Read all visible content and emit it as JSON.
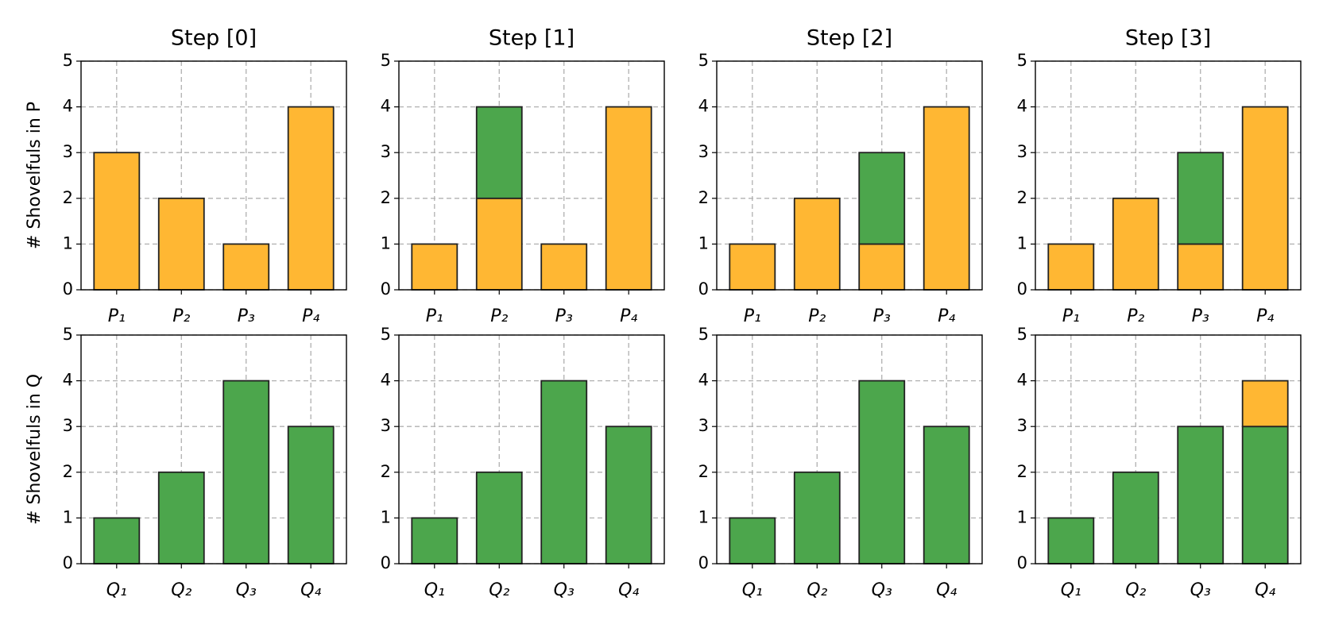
{
  "chart_data": [
    {
      "type": "bar",
      "stacked": true,
      "title": "Step [0]",
      "ylabel": "# Shovelfuls in P",
      "categories": [
        "P₁",
        "P₂",
        "P₃",
        "P₄"
      ],
      "series": [
        {
          "color": "#ffb733",
          "values": [
            3,
            2,
            1,
            4
          ]
        }
      ],
      "ylim": [
        0,
        5
      ],
      "yticks": [
        0,
        1,
        2,
        3,
        4,
        5
      ],
      "grid": true
    },
    {
      "type": "bar",
      "stacked": true,
      "title": "Step [1]",
      "categories": [
        "P₁",
        "P₂",
        "P₃",
        "P₄"
      ],
      "series": [
        {
          "color": "#ffb733",
          "values": [
            1,
            2,
            1,
            4
          ]
        },
        {
          "color": "#4ca64c",
          "values": [
            0,
            2,
            0,
            0
          ]
        }
      ],
      "ylim": [
        0,
        5
      ],
      "yticks": [
        0,
        1,
        2,
        3,
        4,
        5
      ],
      "grid": true
    },
    {
      "type": "bar",
      "stacked": true,
      "title": "Step [2]",
      "categories": [
        "P₁",
        "P₂",
        "P₃",
        "P₄"
      ],
      "series": [
        {
          "color": "#ffb733",
          "values": [
            1,
            2,
            1,
            4
          ]
        },
        {
          "color": "#4ca64c",
          "values": [
            0,
            0,
            2,
            0
          ]
        }
      ],
      "ylim": [
        0,
        5
      ],
      "yticks": [
        0,
        1,
        2,
        3,
        4,
        5
      ],
      "grid": true
    },
    {
      "type": "bar",
      "stacked": true,
      "title": "Step [3]",
      "categories": [
        "P₁",
        "P₂",
        "P₃",
        "P₄"
      ],
      "series": [
        {
          "color": "#ffb733",
          "values": [
            1,
            2,
            1,
            4
          ]
        },
        {
          "color": "#4ca64c",
          "values": [
            0,
            0,
            2,
            0
          ]
        }
      ],
      "ylim": [
        0,
        5
      ],
      "yticks": [
        0,
        1,
        2,
        3,
        4,
        5
      ],
      "grid": true
    },
    {
      "type": "bar",
      "stacked": true,
      "ylabel": "# Shovelfuls in Q",
      "categories": [
        "Q₁",
        "Q₂",
        "Q₃",
        "Q₄"
      ],
      "series": [
        {
          "color": "#4ca64c",
          "values": [
            1,
            2,
            4,
            3
          ]
        }
      ],
      "ylim": [
        0,
        5
      ],
      "yticks": [
        0,
        1,
        2,
        3,
        4,
        5
      ],
      "grid": true
    },
    {
      "type": "bar",
      "stacked": true,
      "categories": [
        "Q₁",
        "Q₂",
        "Q₃",
        "Q₄"
      ],
      "series": [
        {
          "color": "#4ca64c",
          "values": [
            1,
            2,
            4,
            3
          ]
        }
      ],
      "ylim": [
        0,
        5
      ],
      "yticks": [
        0,
        1,
        2,
        3,
        4,
        5
      ],
      "grid": true
    },
    {
      "type": "bar",
      "stacked": true,
      "categories": [
        "Q₁",
        "Q₂",
        "Q₃",
        "Q₄"
      ],
      "series": [
        {
          "color": "#4ca64c",
          "values": [
            1,
            2,
            4,
            3
          ]
        }
      ],
      "ylim": [
        0,
        5
      ],
      "yticks": [
        0,
        1,
        2,
        3,
        4,
        5
      ],
      "grid": true
    },
    {
      "type": "bar",
      "stacked": true,
      "categories": [
        "Q₁",
        "Q₂",
        "Q₃",
        "Q₄"
      ],
      "series": [
        {
          "color": "#4ca64c",
          "values": [
            1,
            2,
            3,
            3
          ]
        },
        {
          "color": "#ffb733",
          "values": [
            0,
            0,
            0,
            1
          ]
        }
      ],
      "ylim": [
        0,
        5
      ],
      "yticks": [
        0,
        1,
        2,
        3,
        4,
        5
      ],
      "grid": true
    }
  ]
}
